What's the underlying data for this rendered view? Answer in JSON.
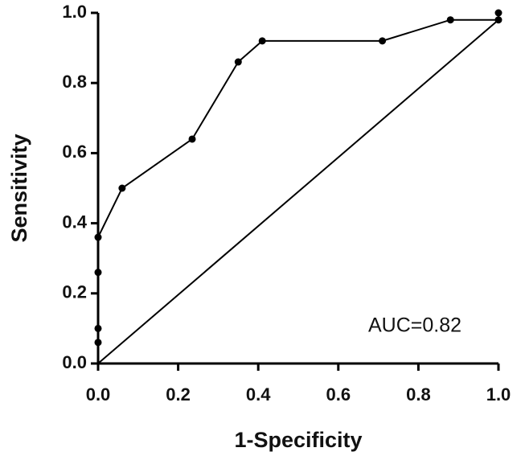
{
  "chart_data": {
    "type": "line",
    "xlabel": "1-Specificity",
    "ylabel": "Sensitivity",
    "annotation": "AUC=0.82",
    "series": [
      {
        "color": "#000000",
        "markers": true,
        "x": [
          0,
          0,
          0,
          0,
          0.06,
          0.235,
          0.35,
          0.41,
          0.71,
          0.88,
          1.0,
          1.0
        ],
        "values": [
          0.06,
          0.1,
          0.26,
          0.36,
          0.5,
          0.64,
          0.86,
          0.92,
          0.92,
          0.98,
          0.98,
          1.0
        ]
      },
      {
        "color": "#000000",
        "markers": false,
        "x": [
          0,
          1.0
        ],
        "values": [
          0,
          0.98
        ]
      }
    ],
    "xlim": [
      0,
      1.0
    ],
    "ylim": [
      0,
      1.0
    ],
    "xticks": [
      {
        "value": 0,
        "label": "0.0"
      },
      {
        "value": 0.2,
        "label": "0.2"
      },
      {
        "value": 0.4,
        "label": "0.4"
      },
      {
        "value": 0.6,
        "label": "0.6"
      },
      {
        "value": 0.8,
        "label": "0.8"
      },
      {
        "value": 1.0,
        "label": "1.0"
      }
    ],
    "yticks": [
      {
        "value": 0,
        "label": "0.0"
      },
      {
        "value": 0.2,
        "label": "0.2"
      },
      {
        "value": 0.4,
        "label": "0.4"
      },
      {
        "value": 0.6,
        "label": "0.6"
      },
      {
        "value": 0.8,
        "label": "0.8"
      },
      {
        "value": 1.0,
        "label": "1.0"
      }
    ],
    "grid": false
  }
}
